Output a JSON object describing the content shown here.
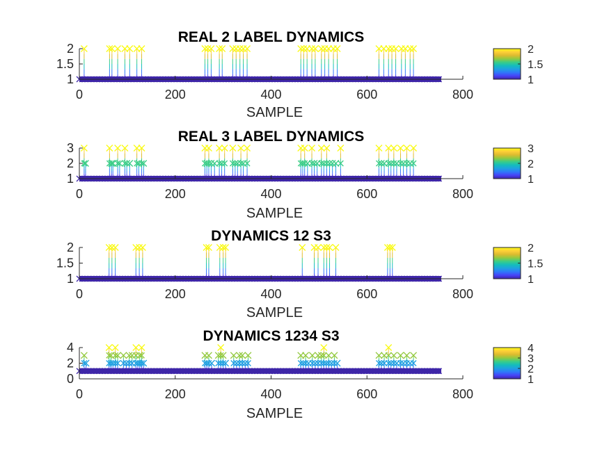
{
  "colormap": [
    "#3e26a8",
    "#4743f8",
    "#2f79f9",
    "#1fa1e0",
    "#14bdbd",
    "#3ccd86",
    "#93c940",
    "#dcbb2f",
    "#fdcf38",
    "#f9fb14"
  ],
  "axis_color": "#262626",
  "chart_data": [
    {
      "type": "scatter",
      "title": "REAL 2 LABEL DYNAMICS",
      "xlabel": "SAMPLE",
      "xlim": [
        0,
        800
      ],
      "ylim": [
        1,
        2
      ],
      "xticks": [
        0,
        200,
        400,
        600,
        800
      ],
      "yticks": [
        1,
        1.5,
        2
      ],
      "ytick_labels": [
        "1",
        "1.5",
        "2"
      ],
      "colorbar": {
        "range": [
          1,
          2
        ],
        "ticks": [
          1,
          1.5,
          2
        ],
        "tick_labels": [
          "1",
          "1.5",
          "2"
        ]
      },
      "base_value": 1,
      "n_samples": 755,
      "events": [
        {
          "x": 10,
          "y": 2
        },
        {
          "x": 63,
          "y": 2
        },
        {
          "x": 68,
          "y": 2
        },
        {
          "x": 80,
          "y": 2
        },
        {
          "x": 95,
          "y": 2
        },
        {
          "x": 105,
          "y": 2
        },
        {
          "x": 120,
          "y": 2
        },
        {
          "x": 130,
          "y": 2
        },
        {
          "x": 262,
          "y": 2
        },
        {
          "x": 268,
          "y": 2
        },
        {
          "x": 275,
          "y": 2
        },
        {
          "x": 292,
          "y": 2
        },
        {
          "x": 298,
          "y": 2
        },
        {
          "x": 320,
          "y": 2
        },
        {
          "x": 327,
          "y": 2
        },
        {
          "x": 335,
          "y": 2
        },
        {
          "x": 342,
          "y": 2
        },
        {
          "x": 350,
          "y": 2
        },
        {
          "x": 462,
          "y": 2
        },
        {
          "x": 468,
          "y": 2
        },
        {
          "x": 475,
          "y": 2
        },
        {
          "x": 485,
          "y": 2
        },
        {
          "x": 492,
          "y": 2
        },
        {
          "x": 505,
          "y": 2
        },
        {
          "x": 512,
          "y": 2
        },
        {
          "x": 520,
          "y": 2
        },
        {
          "x": 530,
          "y": 2
        },
        {
          "x": 538,
          "y": 2
        },
        {
          "x": 625,
          "y": 2
        },
        {
          "x": 635,
          "y": 2
        },
        {
          "x": 645,
          "y": 2
        },
        {
          "x": 652,
          "y": 2
        },
        {
          "x": 660,
          "y": 2
        },
        {
          "x": 672,
          "y": 2
        },
        {
          "x": 680,
          "y": 2
        },
        {
          "x": 690,
          "y": 2
        },
        {
          "x": 697,
          "y": 2
        }
      ]
    },
    {
      "type": "scatter",
      "title": "REAL 3 LABEL DYNAMICS",
      "xlabel": "SAMPLE",
      "xlim": [
        0,
        800
      ],
      "ylim": [
        1,
        3
      ],
      "xticks": [
        0,
        200,
        400,
        600,
        800
      ],
      "yticks": [
        1,
        2,
        3
      ],
      "ytick_labels": [
        "1",
        "2",
        "3"
      ],
      "colorbar": {
        "range": [
          1,
          3
        ],
        "ticks": [
          1,
          2,
          3
        ],
        "tick_labels": [
          "1",
          "2",
          "3"
        ]
      },
      "base_value": 1,
      "n_samples": 755,
      "events": [
        {
          "x": 10,
          "y": 3
        },
        {
          "x": 13,
          "y": 2
        },
        {
          "x": 63,
          "y": 3
        },
        {
          "x": 67,
          "y": 2
        },
        {
          "x": 70,
          "y": 2
        },
        {
          "x": 80,
          "y": 3
        },
        {
          "x": 84,
          "y": 2
        },
        {
          "x": 95,
          "y": 3
        },
        {
          "x": 99,
          "y": 2
        },
        {
          "x": 105,
          "y": 2
        },
        {
          "x": 120,
          "y": 3
        },
        {
          "x": 124,
          "y": 2
        },
        {
          "x": 130,
          "y": 3
        },
        {
          "x": 134,
          "y": 2
        },
        {
          "x": 262,
          "y": 3
        },
        {
          "x": 266,
          "y": 2
        },
        {
          "x": 270,
          "y": 3
        },
        {
          "x": 275,
          "y": 2
        },
        {
          "x": 282,
          "y": 2
        },
        {
          "x": 292,
          "y": 3
        },
        {
          "x": 297,
          "y": 2
        },
        {
          "x": 303,
          "y": 3
        },
        {
          "x": 320,
          "y": 3
        },
        {
          "x": 325,
          "y": 2
        },
        {
          "x": 330,
          "y": 2
        },
        {
          "x": 337,
          "y": 3
        },
        {
          "x": 342,
          "y": 2
        },
        {
          "x": 350,
          "y": 3
        },
        {
          "x": 462,
          "y": 3
        },
        {
          "x": 466,
          "y": 2
        },
        {
          "x": 470,
          "y": 3
        },
        {
          "x": 476,
          "y": 2
        },
        {
          "x": 485,
          "y": 3
        },
        {
          "x": 490,
          "y": 2
        },
        {
          "x": 496,
          "y": 2
        },
        {
          "x": 505,
          "y": 3
        },
        {
          "x": 510,
          "y": 2
        },
        {
          "x": 516,
          "y": 3
        },
        {
          "x": 522,
          "y": 2
        },
        {
          "x": 528,
          "y": 2
        },
        {
          "x": 535,
          "y": 2
        },
        {
          "x": 545,
          "y": 3
        },
        {
          "x": 625,
          "y": 3
        },
        {
          "x": 630,
          "y": 2
        },
        {
          "x": 636,
          "y": 2
        },
        {
          "x": 645,
          "y": 3
        },
        {
          "x": 650,
          "y": 2
        },
        {
          "x": 656,
          "y": 3
        },
        {
          "x": 662,
          "y": 2
        },
        {
          "x": 670,
          "y": 3
        },
        {
          "x": 676,
          "y": 2
        },
        {
          "x": 683,
          "y": 3
        },
        {
          "x": 690,
          "y": 2
        },
        {
          "x": 697,
          "y": 3
        }
      ]
    },
    {
      "type": "scatter",
      "title": "DYNAMICS 12 S3",
      "xlabel": "SAMPLE",
      "xlim": [
        0,
        800
      ],
      "ylim": [
        1,
        2
      ],
      "xticks": [
        0,
        200,
        400,
        600,
        800
      ],
      "yticks": [
        1,
        1.5,
        2
      ],
      "ytick_labels": [
        "1",
        "1.5",
        "2"
      ],
      "colorbar": {
        "range": [
          1,
          2
        ],
        "ticks": [
          1,
          1.5,
          2
        ],
        "tick_labels": [
          "1",
          "1.5",
          "2"
        ]
      },
      "base_value": 1,
      "n_samples": 755,
      "events": [
        {
          "x": 62,
          "y": 2
        },
        {
          "x": 68,
          "y": 2
        },
        {
          "x": 75,
          "y": 2
        },
        {
          "x": 118,
          "y": 2
        },
        {
          "x": 125,
          "y": 2
        },
        {
          "x": 132,
          "y": 2
        },
        {
          "x": 265,
          "y": 2
        },
        {
          "x": 270,
          "y": 2
        },
        {
          "x": 293,
          "y": 2
        },
        {
          "x": 300,
          "y": 2
        },
        {
          "x": 305,
          "y": 2
        },
        {
          "x": 465,
          "y": 2
        },
        {
          "x": 490,
          "y": 2
        },
        {
          "x": 498,
          "y": 2
        },
        {
          "x": 510,
          "y": 2
        },
        {
          "x": 516,
          "y": 2
        },
        {
          "x": 522,
          "y": 2
        },
        {
          "x": 535,
          "y": 2
        },
        {
          "x": 643,
          "y": 2
        },
        {
          "x": 648,
          "y": 2
        },
        {
          "x": 653,
          "y": 2
        }
      ]
    },
    {
      "type": "scatter",
      "title": "DYNAMICS 1234 S3",
      "xlabel": "SAMPLE",
      "xlim": [
        0,
        800
      ],
      "ylim": [
        0,
        4
      ],
      "xticks": [
        0,
        200,
        400,
        600,
        800
      ],
      "yticks": [
        0,
        2,
        4
      ],
      "ytick_labels": [
        "0",
        "2",
        "4"
      ],
      "colorbar": {
        "range": [
          1,
          4
        ],
        "ticks": [
          1,
          2,
          3,
          4
        ],
        "tick_labels": [
          "1",
          "2",
          "3",
          "4"
        ]
      },
      "base_value": 1,
      "n_samples": 755,
      "events": [
        {
          "x": 10,
          "y": 3
        },
        {
          "x": 14,
          "y": 2
        },
        {
          "x": 62,
          "y": 4
        },
        {
          "x": 66,
          "y": 3
        },
        {
          "x": 70,
          "y": 2
        },
        {
          "x": 75,
          "y": 4
        },
        {
          "x": 80,
          "y": 3
        },
        {
          "x": 92,
          "y": 3
        },
        {
          "x": 98,
          "y": 2
        },
        {
          "x": 104,
          "y": 3
        },
        {
          "x": 110,
          "y": 3
        },
        {
          "x": 118,
          "y": 4
        },
        {
          "x": 122,
          "y": 2
        },
        {
          "x": 126,
          "y": 3
        },
        {
          "x": 130,
          "y": 4
        },
        {
          "x": 134,
          "y": 2
        },
        {
          "x": 262,
          "y": 3
        },
        {
          "x": 266,
          "y": 2
        },
        {
          "x": 270,
          "y": 3
        },
        {
          "x": 276,
          "y": 2
        },
        {
          "x": 290,
          "y": 3
        },
        {
          "x": 295,
          "y": 4
        },
        {
          "x": 300,
          "y": 3
        },
        {
          "x": 305,
          "y": 2
        },
        {
          "x": 322,
          "y": 3
        },
        {
          "x": 328,
          "y": 2
        },
        {
          "x": 334,
          "y": 3
        },
        {
          "x": 340,
          "y": 3
        },
        {
          "x": 346,
          "y": 2
        },
        {
          "x": 352,
          "y": 3
        },
        {
          "x": 462,
          "y": 3
        },
        {
          "x": 467,
          "y": 2
        },
        {
          "x": 472,
          "y": 3
        },
        {
          "x": 478,
          "y": 2
        },
        {
          "x": 486,
          "y": 3
        },
        {
          "x": 492,
          "y": 2
        },
        {
          "x": 498,
          "y": 3
        },
        {
          "x": 505,
          "y": 3
        },
        {
          "x": 510,
          "y": 4
        },
        {
          "x": 515,
          "y": 2
        },
        {
          "x": 520,
          "y": 3
        },
        {
          "x": 526,
          "y": 2
        },
        {
          "x": 532,
          "y": 3
        },
        {
          "x": 538,
          "y": 2
        },
        {
          "x": 625,
          "y": 3
        },
        {
          "x": 630,
          "y": 2
        },
        {
          "x": 636,
          "y": 3
        },
        {
          "x": 645,
          "y": 4
        },
        {
          "x": 650,
          "y": 2
        },
        {
          "x": 656,
          "y": 3
        },
        {
          "x": 662,
          "y": 2
        },
        {
          "x": 670,
          "y": 3
        },
        {
          "x": 676,
          "y": 2
        },
        {
          "x": 683,
          "y": 3
        },
        {
          "x": 690,
          "y": 2
        },
        {
          "x": 697,
          "y": 3
        }
      ]
    }
  ]
}
